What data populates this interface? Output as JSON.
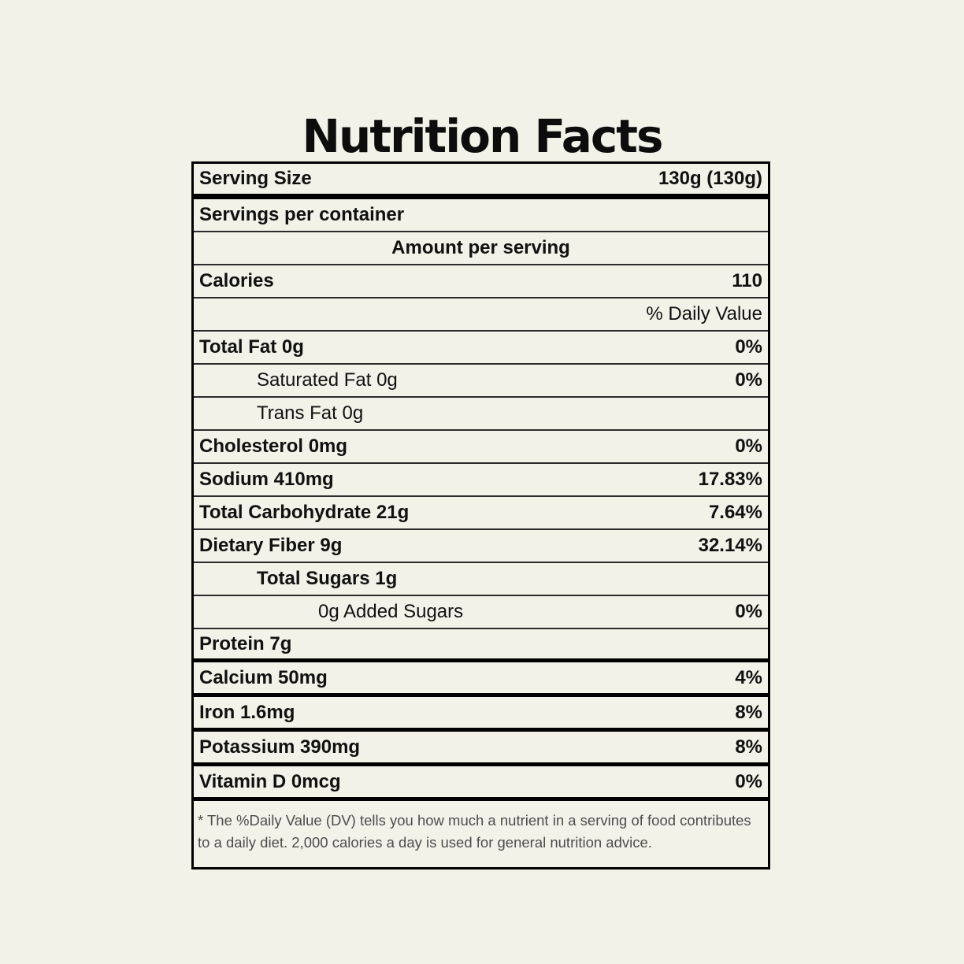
{
  "page": {
    "title": "Nutrition Facts",
    "background_color": "#F2F2E9",
    "text_color": "#111111",
    "footnote_color": "#4d4d4d",
    "border_color": "#000000"
  },
  "label": {
    "serving_size": {
      "label": "Serving Size",
      "value": "130g (130g)"
    },
    "servings_per_container": {
      "label": "Servings per container",
      "value": ""
    },
    "amount_per_serving": {
      "label": "Amount per serving"
    },
    "calories": {
      "label": "Calories",
      "value": "110"
    },
    "daily_value_header": {
      "value": "% Daily Value"
    },
    "rows": [
      {
        "label": "Total Fat 0g",
        "value": "0%"
      },
      {
        "label": "Saturated Fat 0g",
        "value": "0%"
      },
      {
        "label": "Trans Fat 0g",
        "value": ""
      },
      {
        "label": "Cholesterol 0mg",
        "value": "0%"
      },
      {
        "label": "Sodium 410mg",
        "value": "17.83%"
      },
      {
        "label": "Total Carbohydrate 21g",
        "value": "7.64%"
      },
      {
        "label": "Dietary Fiber 9g",
        "value": "32.14%"
      },
      {
        "label": "Total Sugars 1g",
        "value": ""
      },
      {
        "label": "0g Added Sugars",
        "value": "0%"
      },
      {
        "label": "Protein 7g",
        "value": ""
      },
      {
        "label": "Calcium 50mg",
        "value": "4%"
      },
      {
        "label": "Iron 1.6mg",
        "value": "8%"
      },
      {
        "label": "Potassium 390mg",
        "value": "8%"
      },
      {
        "label": "Vitamin D 0mcg",
        "value": "0%"
      }
    ],
    "footnote": "* The %Daily Value (DV) tells you how much a nutrient in a serving of food contributes to a daily diet. 2,000 calories a day is used for general nutrition advice."
  }
}
